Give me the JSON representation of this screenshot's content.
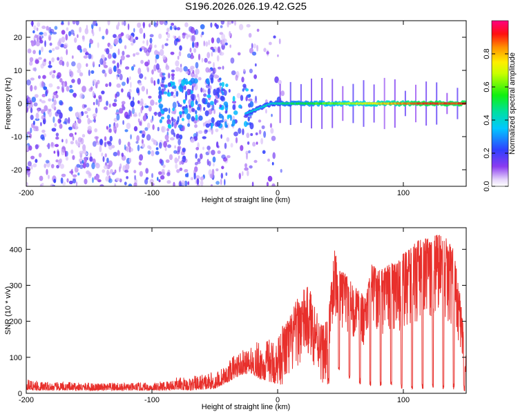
{
  "title": "S196.2026.026.19.42.G25",
  "colors": {
    "snr_line": "#e8302c",
    "scatter_base": "#7a3cf0",
    "frame": "#000000"
  },
  "chart_data": [
    {
      "type": "heatmap",
      "title": "S196.2026.026.19.42.G25",
      "xlabel": "Height of straight line (km)",
      "ylabel": "Frequency (Hz)",
      "xlim": [
        -200,
        150
      ],
      "ylim": [
        -25,
        25
      ],
      "x_ticks": [
        -200,
        -100,
        0,
        100
      ],
      "y_ticks": [
        -20,
        -10,
        0,
        10,
        20
      ],
      "colorbar": {
        "label": "Normalized spectral amplitude",
        "range": [
          0,
          1
        ],
        "ticks": [
          0.0,
          0.2,
          0.4,
          0.6,
          0.8
        ],
        "tick_labels": [
          "0.0",
          "0.2",
          "0.4",
          "0.6",
          "0.8"
        ],
        "colormap": "hsv-rainbow (white→violet→blue→cyan→green→yellow→orange→red→magenta)"
      },
      "features": [
        {
          "region": "x from -200 to 0",
          "description": "diffuse low-amplitude noise (0.05–0.25) spread across all frequencies"
        },
        {
          "region": "x from -90 to -20",
          "description": "noise concentrated near 0 Hz, amplitude up to ~0.35"
        },
        {
          "region": "x from -25 to 150",
          "description": "coherent line near 0 Hz, amplitude rising from ~0.4 to ~0.9"
        }
      ]
    },
    {
      "type": "line",
      "xlabel": "Height of straight line (km)",
      "ylabel": "SNR (10 * v/v)",
      "xlim": [
        -200,
        150
      ],
      "ylim": [
        0,
        460
      ],
      "x_ticks": [
        -200,
        -100,
        0,
        100
      ],
      "y_ticks": [
        0,
        100,
        200,
        300,
        400
      ],
      "series": [
        {
          "name": "SNR",
          "color": "#e8302c",
          "x": [
            -200,
            -190,
            -180,
            -170,
            -160,
            -150,
            -140,
            -130,
            -120,
            -110,
            -100,
            -90,
            -80,
            -70,
            -60,
            -50,
            -40,
            -35,
            -30,
            -25,
            -20,
            -15,
            -10,
            -5,
            0,
            5,
            10,
            15,
            20,
            25,
            30,
            35,
            40,
            42,
            45,
            50,
            55,
            60,
            65,
            70,
            75,
            80,
            85,
            90,
            95,
            100,
            105,
            110,
            115,
            120,
            125,
            130,
            135,
            140,
            145,
            150
          ],
          "baseline": [
            10,
            8,
            8,
            8,
            8,
            8,
            8,
            8,
            8,
            8,
            8,
            8,
            10,
            8,
            10,
            12,
            30,
            40,
            50,
            55,
            55,
            40,
            35,
            30,
            25,
            15,
            30,
            70,
            90,
            90,
            70,
            30,
            20,
            35,
            60,
            60,
            40,
            30,
            25,
            20,
            15,
            15,
            15,
            15,
            12,
            12,
            12,
            12,
            10,
            10,
            10,
            10,
            10,
            10,
            10,
            5
          ],
          "envelope": [
            40,
            35,
            30,
            32,
            30,
            30,
            28,
            30,
            28,
            30,
            30,
            35,
            45,
            45,
            55,
            60,
            80,
            110,
            120,
            120,
            130,
            150,
            150,
            155,
            160,
            200,
            220,
            260,
            290,
            300,
            250,
            200,
            200,
            280,
            400,
            340,
            330,
            300,
            290,
            260,
            360,
            340,
            350,
            360,
            360,
            390,
            400,
            420,
            430,
            430,
            440,
            440,
            430,
            400,
            280,
            100
          ]
        }
      ]
    }
  ]
}
